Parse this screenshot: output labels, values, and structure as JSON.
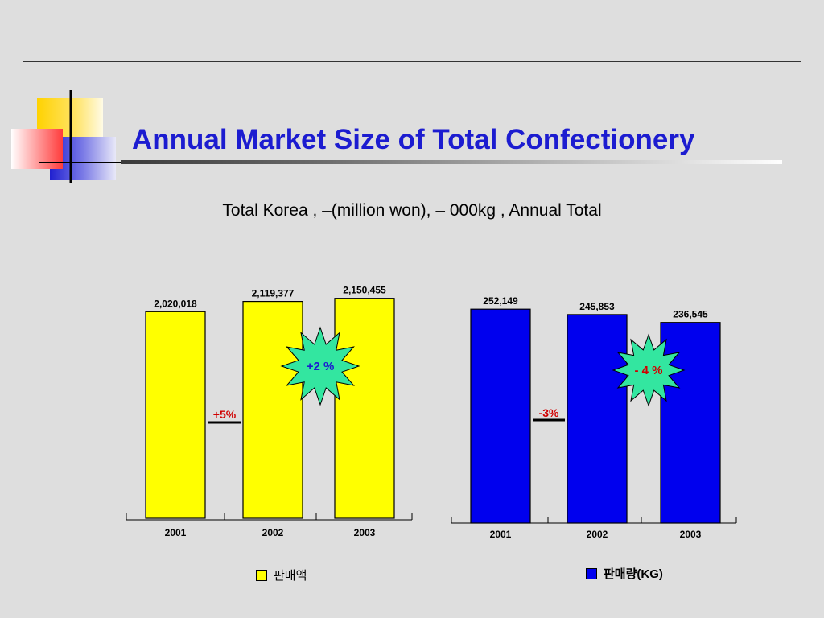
{
  "title": "Annual Market Size of Total Confectionery",
  "subtitle": "Total Korea , –(million won), – 000kg , Annual Total",
  "chart_data": [
    {
      "type": "bar",
      "categories": [
        "2001",
        "2002",
        "2003"
      ],
      "series": [
        {
          "name": "판매액",
          "values": [
            2020018,
            2119377,
            2150455
          ],
          "color": "#ffff00"
        }
      ],
      "value_labels": [
        "2,020,018",
        "2,119,377",
        "2,150,455"
      ],
      "annotations": [
        {
          "text": "+5%",
          "color": "#d00000",
          "between": [
            "2001",
            "2002"
          ]
        },
        {
          "text": "+2 %",
          "color": "#1c1cd0",
          "style": "starburst",
          "fill": "#33e6a0",
          "between": [
            "2002",
            "2003"
          ]
        }
      ]
    },
    {
      "type": "bar",
      "categories": [
        "2001",
        "2002",
        "2003"
      ],
      "series": [
        {
          "name": "판매량(KG)",
          "values": [
            252149,
            245853,
            236545
          ],
          "color": "#0000ee"
        }
      ],
      "value_labels": [
        "252,149",
        "245,853",
        "236,545"
      ],
      "annotations": [
        {
          "text": "-3%",
          "color": "#d00000",
          "between": [
            "2001",
            "2002"
          ]
        },
        {
          "text": "- 4 %",
          "color": "#d00000",
          "style": "starburst",
          "fill": "#33e6a0",
          "between": [
            "2002",
            "2003"
          ]
        }
      ]
    }
  ]
}
